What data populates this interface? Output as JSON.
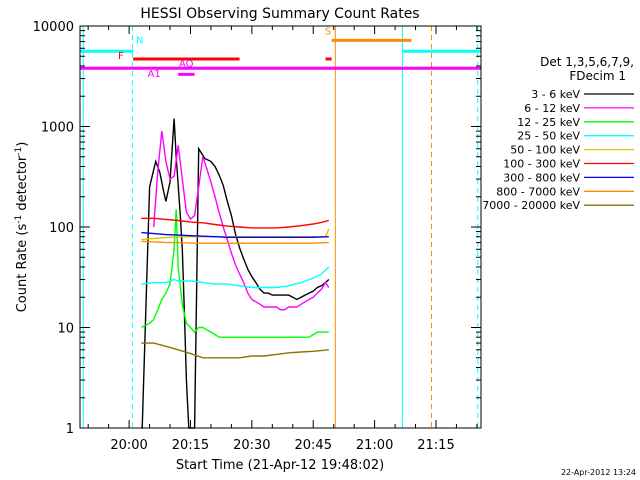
{
  "chart_data": {
    "type": "line",
    "title": "HESSI Observing Summary Count Rates",
    "xlabel": "Start Time (21-Apr-12 19:48:02)",
    "ylabel_main": "Count Rate (s",
    "ylabel_sup": "-1",
    "ylabel_mid": " detector",
    "ylabel_end": ")",
    "yscale": "log",
    "ylim": [
      1,
      10000
    ],
    "xlim_minutes": [
      -12,
      86
    ],
    "x_ticks": [
      {
        "m": 0,
        "label": "20:00"
      },
      {
        "m": 15,
        "label": "20:15"
      },
      {
        "m": 30,
        "label": "20:30"
      },
      {
        "m": 45,
        "label": "20:45"
      },
      {
        "m": 60,
        "label": "21:00"
      },
      {
        "m": 75,
        "label": "21:15"
      }
    ],
    "y_ticks": [
      {
        "v": 1,
        "label": "1"
      },
      {
        "v": 10,
        "label": "10"
      },
      {
        "v": 100,
        "label": "100"
      },
      {
        "v": 1000,
        "label": "1000"
      },
      {
        "v": 10000,
        "label": "10000"
      }
    ],
    "legend": {
      "header": [
        "Det 1,3,5,6,7,9,",
        "FDecim 1"
      ],
      "entries": [
        {
          "label": "3 - 6 keV",
          "color": "#000000"
        },
        {
          "label": "6 - 12 keV",
          "color": "#ff00ff"
        },
        {
          "label": "12 - 25 keV",
          "color": "#00ff00"
        },
        {
          "label": "25 - 50 keV",
          "color": "#00ffff"
        },
        {
          "label": "50 - 100 keV",
          "color": "#e5c000"
        },
        {
          "label": "100 - 300 keV",
          "color": "#ff0000"
        },
        {
          "label": "300 - 800 keV",
          "color": "#0000ff"
        },
        {
          "label": "800 - 7000 keV",
          "color": "#ff8c00"
        },
        {
          "label": "7000 - 20000 keV",
          "color": "#8b7500"
        }
      ]
    },
    "series": [
      {
        "name": "3 - 6 keV",
        "color": "#000000",
        "points": [
          [
            3,
            1
          ],
          [
            3.2,
            1
          ],
          [
            5,
            250
          ],
          [
            6.5,
            450
          ],
          [
            7.5,
            350
          ],
          [
            8.5,
            220
          ],
          [
            9,
            180
          ],
          [
            10,
            280
          ],
          [
            11,
            1200
          ],
          [
            11.5,
            500
          ],
          [
            12.5,
            130
          ],
          [
            13,
            60
          ],
          [
            13.5,
            15
          ],
          [
            14,
            3
          ],
          [
            14.6,
            1
          ],
          [
            16,
            1
          ],
          [
            17,
            600
          ],
          [
            18.5,
            480
          ],
          [
            20,
            450
          ],
          [
            21,
            400
          ],
          [
            22,
            330
          ],
          [
            23,
            260
          ],
          [
            24,
            180
          ],
          [
            25,
            130
          ],
          [
            26,
            85
          ],
          [
            27,
            62
          ],
          [
            28,
            48
          ],
          [
            29,
            38
          ],
          [
            30,
            32
          ],
          [
            31,
            28
          ],
          [
            32,
            24
          ],
          [
            33,
            22
          ],
          [
            34,
            22
          ],
          [
            35,
            21
          ],
          [
            36,
            21
          ],
          [
            37,
            21
          ],
          [
            38,
            21
          ],
          [
            39,
            21
          ],
          [
            40,
            20
          ],
          [
            41,
            19
          ],
          [
            42,
            20
          ],
          [
            43,
            21
          ],
          [
            44,
            22
          ],
          [
            45,
            23
          ],
          [
            46,
            25
          ],
          [
            47,
            26
          ],
          [
            48,
            28
          ],
          [
            48.8,
            30
          ]
        ]
      },
      {
        "name": "6 - 12 keV",
        "color": "#ff00ff",
        "points": [
          [
            6,
            100
          ],
          [
            7,
            350
          ],
          [
            8,
            900
          ],
          [
            9,
            450
          ],
          [
            10,
            300
          ],
          [
            11,
            320
          ],
          [
            12,
            650
          ],
          [
            13,
            300
          ],
          [
            14,
            140
          ],
          [
            15,
            120
          ],
          [
            16,
            130
          ],
          [
            17,
            250
          ],
          [
            18,
            500
          ],
          [
            19,
            380
          ],
          [
            20,
            280
          ],
          [
            21,
            200
          ],
          [
            22,
            140
          ],
          [
            23,
            100
          ],
          [
            24,
            75
          ],
          [
            25,
            55
          ],
          [
            26,
            42
          ],
          [
            27,
            34
          ],
          [
            28,
            28
          ],
          [
            29,
            22
          ],
          [
            30,
            19
          ],
          [
            31,
            18
          ],
          [
            32,
            17
          ],
          [
            33,
            16
          ],
          [
            34,
            16
          ],
          [
            35,
            16
          ],
          [
            36,
            16
          ],
          [
            37,
            15
          ],
          [
            38,
            15
          ],
          [
            39,
            16
          ],
          [
            40,
            16
          ],
          [
            41,
            16
          ],
          [
            42,
            17
          ],
          [
            43,
            18
          ],
          [
            44,
            19
          ],
          [
            45,
            20
          ],
          [
            46,
            22
          ],
          [
            47,
            24
          ],
          [
            48,
            28
          ],
          [
            48.8,
            25
          ]
        ]
      },
      {
        "name": "12 - 25 keV",
        "color": "#00ff00",
        "points": [
          [
            3,
            10
          ],
          [
            5,
            11
          ],
          [
            6,
            12
          ],
          [
            7,
            15
          ],
          [
            8,
            19
          ],
          [
            9,
            22
          ],
          [
            10,
            27
          ],
          [
            11,
            60
          ],
          [
            11.5,
            150
          ],
          [
            12,
            40
          ],
          [
            13,
            17
          ],
          [
            14,
            11
          ],
          [
            15,
            10
          ],
          [
            16,
            9
          ],
          [
            17,
            10
          ],
          [
            18,
            10
          ],
          [
            20,
            9
          ],
          [
            22,
            8
          ],
          [
            24,
            8
          ],
          [
            26,
            8
          ],
          [
            28,
            8
          ],
          [
            30,
            8
          ],
          [
            32,
            8
          ],
          [
            34,
            8
          ],
          [
            36,
            8
          ],
          [
            38,
            8
          ],
          [
            40,
            8
          ],
          [
            42,
            8
          ],
          [
            44,
            8
          ],
          [
            46,
            9
          ],
          [
            48,
            9
          ],
          [
            48.8,
            9
          ]
        ]
      },
      {
        "name": "25 - 50 keV",
        "color": "#00ffff",
        "points": [
          [
            3,
            27
          ],
          [
            6,
            28
          ],
          [
            9,
            28
          ],
          [
            11,
            30
          ],
          [
            12,
            29
          ],
          [
            15,
            29
          ],
          [
            18,
            28
          ],
          [
            21,
            27
          ],
          [
            24,
            27
          ],
          [
            27,
            26
          ],
          [
            30,
            25
          ],
          [
            33,
            25
          ],
          [
            36,
            25
          ],
          [
            39,
            26
          ],
          [
            42,
            28
          ],
          [
            45,
            31
          ],
          [
            47,
            34
          ],
          [
            48.8,
            40
          ]
        ]
      },
      {
        "name": "50 - 100 keV",
        "color": "#e5c000",
        "points": [
          [
            3,
            75
          ],
          [
            6,
            77
          ],
          [
            10,
            79
          ],
          [
            14,
            80
          ],
          [
            18,
            80
          ],
          [
            22,
            80
          ],
          [
            26,
            80
          ],
          [
            30,
            80
          ],
          [
            34,
            80
          ],
          [
            38,
            80
          ],
          [
            42,
            80
          ],
          [
            46,
            80
          ],
          [
            48,
            80
          ],
          [
            48.8,
            95
          ]
        ]
      },
      {
        "name": "100 - 300 keV",
        "color": "#ff0000",
        "points": [
          [
            3,
            122
          ],
          [
            6,
            122
          ],
          [
            9,
            119
          ],
          [
            12,
            116
          ],
          [
            15,
            112
          ],
          [
            18,
            110
          ],
          [
            21,
            106
          ],
          [
            24,
            102
          ],
          [
            27,
            100
          ],
          [
            30,
            98
          ],
          [
            33,
            98
          ],
          [
            36,
            98
          ],
          [
            39,
            100
          ],
          [
            42,
            103
          ],
          [
            45,
            107
          ],
          [
            47,
            111
          ],
          [
            48.8,
            116
          ]
        ]
      },
      {
        "name": "300 - 800 keV",
        "color": "#0000ff",
        "points": [
          [
            3,
            88
          ],
          [
            6,
            86
          ],
          [
            9,
            84
          ],
          [
            12,
            83
          ],
          [
            15,
            82
          ],
          [
            18,
            81
          ],
          [
            21,
            80
          ],
          [
            24,
            79
          ],
          [
            27,
            79
          ],
          [
            30,
            79
          ],
          [
            33,
            79
          ],
          [
            36,
            79
          ],
          [
            39,
            79
          ],
          [
            42,
            79
          ],
          [
            45,
            79
          ],
          [
            48.8,
            80
          ]
        ]
      },
      {
        "name": "800 - 7000 keV",
        "color": "#ff8c00",
        "points": [
          [
            3,
            72
          ],
          [
            6,
            71
          ],
          [
            9,
            70
          ],
          [
            12,
            70
          ],
          [
            15,
            69
          ],
          [
            18,
            69
          ],
          [
            21,
            69
          ],
          [
            24,
            69
          ],
          [
            27,
            69
          ],
          [
            30,
            69
          ],
          [
            33,
            69
          ],
          [
            36,
            69
          ],
          [
            39,
            69
          ],
          [
            42,
            69
          ],
          [
            45,
            69
          ],
          [
            48.8,
            70
          ]
        ]
      },
      {
        "name": "7000 - 20000 keV",
        "color": "#8b7500",
        "points": [
          [
            3,
            7
          ],
          [
            6,
            7
          ],
          [
            9,
            6.5
          ],
          [
            12,
            6
          ],
          [
            15,
            5.5
          ],
          [
            18,
            5
          ],
          [
            21,
            5
          ],
          [
            24,
            5
          ],
          [
            27,
            5
          ],
          [
            30,
            5.2
          ],
          [
            33,
            5.2
          ],
          [
            36,
            5.4
          ],
          [
            39,
            5.6
          ],
          [
            42,
            5.7
          ],
          [
            45,
            5.8
          ],
          [
            48.8,
            6
          ]
        ]
      }
    ],
    "annotations": {
      "cyan_top_bars": [
        {
          "x0": -12,
          "x1": 1,
          "y": 5600,
          "color": "#00ffff"
        },
        {
          "x0": 67,
          "x1": 86,
          "y": 5600,
          "color": "#00ffff"
        }
      ],
      "magenta_line": {
        "x0": -12,
        "x1": 86,
        "y": 3800,
        "color": "#ff00ff"
      },
      "red_bars": [
        {
          "x0": 1,
          "x1": 27,
          "y": 4700,
          "color": "#ff0000"
        },
        {
          "x0": 48,
          "x1": 49.5,
          "y": 4700,
          "color": "#ff0000"
        }
      ],
      "orange_bar": {
        "x0": 49.5,
        "x1": 69,
        "y": 7200,
        "color": "#ff8c00"
      },
      "magenta_short": {
        "x0": 12,
        "x1": 16,
        "y": 3300,
        "color": "#ff00ff"
      },
      "labels": [
        {
          "text": "N",
          "x": 1.7,
          "y": 6700,
          "color": "#00ffff"
        },
        {
          "text": "F",
          "x": -2.7,
          "y": 4700,
          "color": "#ff0000"
        },
        {
          "text": "A1",
          "x": 4.5,
          "y": 3100,
          "color": "#ff00ff"
        },
        {
          "text": "AQ",
          "x": 12.2,
          "y": 3900,
          "color": "#ff00ff"
        },
        {
          "text": "S",
          "x": 47.8,
          "y": 8200,
          "color": "#ff8c00"
        }
      ],
      "vlines": [
        {
          "x": -11.2,
          "color": "#00ffff",
          "dash": false
        },
        {
          "x": 0.8,
          "color": "#00ffff",
          "dash": true
        },
        {
          "x": 50.4,
          "color": "#ff8c00",
          "dash": false
        },
        {
          "x": 66.8,
          "color": "#00ffff",
          "dash": false
        },
        {
          "x": 73.9,
          "color": "#ff8c00",
          "dash": true
        },
        {
          "x": 85.2,
          "color": "#00ffff",
          "dash": true
        }
      ]
    }
  },
  "footer_date": "22-Apr-2012 13:24"
}
